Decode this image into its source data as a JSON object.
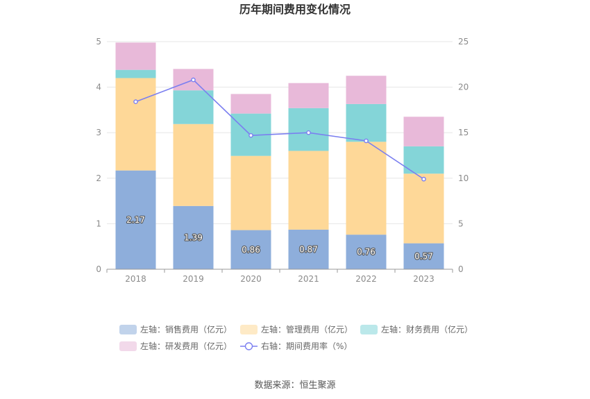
{
  "chart_data": {
    "type": "bar",
    "title": "历年期间费用变化情况",
    "categories": [
      "2018",
      "2019",
      "2020",
      "2021",
      "2022",
      "2023"
    ],
    "stacked": true,
    "left_axis": {
      "min": 0,
      "max": 5,
      "ticks": [
        "0",
        "1",
        "2",
        "3",
        "4",
        "5"
      ]
    },
    "right_axis": {
      "min": 0,
      "max": 25,
      "ticks": [
        "0",
        "5",
        "10",
        "15",
        "20",
        "25"
      ]
    },
    "series": [
      {
        "name": "左轴：销售费用（亿元）",
        "type": "bar",
        "axis": "left",
        "color": "#8eaedb",
        "values": [
          2.17,
          1.39,
          0.86,
          0.87,
          0.76,
          0.57
        ],
        "labels": [
          "2.17",
          "1.39",
          "0.86",
          "0.87",
          "0.76",
          "0.57"
        ]
      },
      {
        "name": "左轴：管理费用（亿元）",
        "type": "bar",
        "axis": "left",
        "color": "#fed898",
        "values": [
          2.03,
          1.8,
          1.63,
          1.73,
          2.04,
          1.53
        ]
      },
      {
        "name": "左轴：财务费用（亿元）",
        "type": "bar",
        "axis": "left",
        "color": "#84d5d8",
        "values": [
          0.18,
          0.74,
          0.93,
          0.94,
          0.83,
          0.6
        ]
      },
      {
        "name": "左轴：研发费用（亿元）",
        "type": "bar",
        "axis": "left",
        "color": "#e8b9d9",
        "values": [
          0.6,
          0.47,
          0.43,
          0.55,
          0.62,
          0.65
        ]
      },
      {
        "name": "右轴：期间费用率（%）",
        "type": "line",
        "axis": "right",
        "color": "#7b7ff0",
        "values": [
          18.4,
          20.8,
          14.7,
          15.0,
          14.1,
          9.9
        ]
      }
    ],
    "grid": true,
    "legend_position": "bottom"
  },
  "source_note": "数据来源：恒生聚源"
}
